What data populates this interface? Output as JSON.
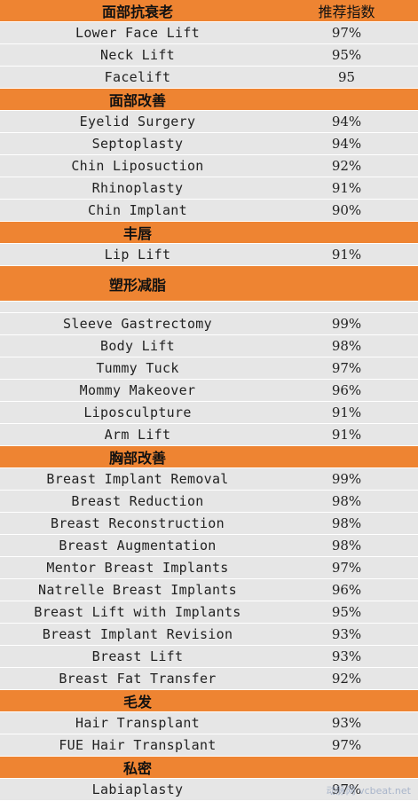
{
  "header": {
    "category": "面部抗衰老",
    "score": "推荐指数"
  },
  "sections": [
    {
      "title": "",
      "items": [
        {
          "name": "Lower Face Lift",
          "score": "97%"
        },
        {
          "name": "Neck Lift",
          "score": "95%"
        },
        {
          "name": "Facelift",
          "score": "95"
        }
      ]
    },
    {
      "title": "面部改善",
      "items": [
        {
          "name": "Eyelid Surgery",
          "score": "94%"
        },
        {
          "name": "Septoplasty",
          "score": "94%"
        },
        {
          "name": "Chin Liposuction",
          "score": "92%"
        },
        {
          "name": "Rhinoplasty",
          "score": "91%"
        },
        {
          "name": "Chin Implant",
          "score": "90%"
        }
      ]
    },
    {
      "title": "丰唇",
      "items": [
        {
          "name": "Lip Lift",
          "score": "91%"
        }
      ]
    },
    {
      "title": "塑形减脂",
      "tall": true,
      "items": [
        {
          "name": "Sleeve Gastrectomy",
          "score": "99%"
        },
        {
          "name": "Body Lift",
          "score": "98%"
        },
        {
          "name": "Tummy Tuck",
          "score": "97%"
        },
        {
          "name": "Mommy Makeover",
          "score": "96%"
        },
        {
          "name": "Liposculpture",
          "score": "91%"
        },
        {
          "name": "Arm Lift",
          "score": "91%"
        }
      ]
    },
    {
      "title": "胸部改善",
      "items": [
        {
          "name": "Breast Implant Removal",
          "score": "99%"
        },
        {
          "name": "Breast Reduction",
          "score": "98%"
        },
        {
          "name": "Breast Reconstruction",
          "score": "98%"
        },
        {
          "name": "Breast Augmentation",
          "score": "98%"
        },
        {
          "name": "Mentor Breast Implants",
          "score": "97%"
        },
        {
          "name": "Natrelle Breast Implants",
          "score": "96%"
        },
        {
          "name": "Breast Lift with Implants",
          "score": "95%"
        },
        {
          "name": "Breast Implant Revision",
          "score": "93%"
        },
        {
          "name": "Breast Lift",
          "score": "93%"
        },
        {
          "name": "Breast Fat Transfer",
          "score": "92%"
        }
      ]
    },
    {
      "title": "毛发",
      "items": [
        {
          "name": "Hair Transplant",
          "score": "93%"
        },
        {
          "name": "FUE Hair Transplant",
          "score": "97%"
        }
      ]
    },
    {
      "title": "私密",
      "items": [
        {
          "name": "Labiaplasty",
          "score": "97%"
        }
      ]
    }
  ],
  "watermark": "动脉网 vcbeat.net",
  "colors": {
    "header_bg": "#EE8432",
    "row_bg": "#E6E6E6"
  }
}
